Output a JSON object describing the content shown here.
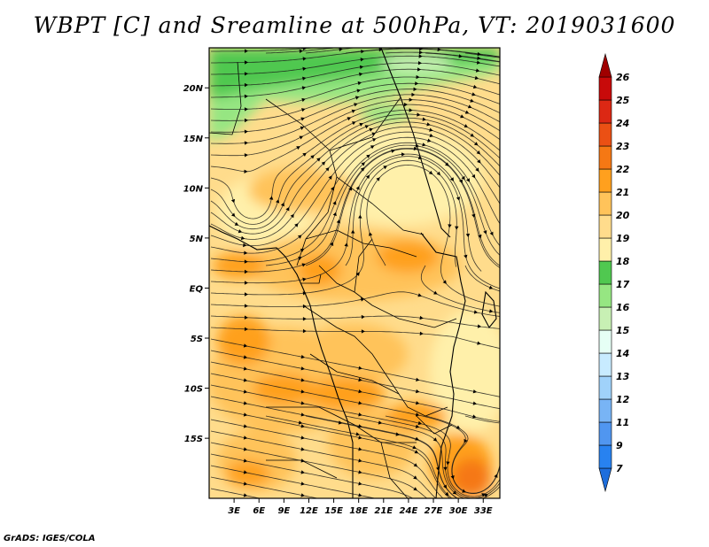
{
  "title": "WBPT [C] and Sreamline at 500hPa, VT: 2019031600",
  "footer": "GrADS: IGES/COLA",
  "map": {
    "lon_range": [
      0,
      35
    ],
    "lat_range": [
      -21,
      24
    ],
    "lon_ticks": [
      "3E",
      "6E",
      "9E",
      "12E",
      "15E",
      "18E",
      "21E",
      "24E",
      "27E",
      "30E",
      "33E"
    ],
    "lat_ticks": [
      "20N",
      "15N",
      "10N",
      "5N",
      "EQ",
      "5S",
      "10S",
      "15S"
    ]
  },
  "colorbar": {
    "labels": [
      "7",
      "9",
      "11",
      "12",
      "13",
      "14",
      "15",
      "16",
      "17",
      "18",
      "19",
      "20",
      "21",
      "22",
      "23",
      "24",
      "25",
      "26"
    ],
    "colors": [
      "#1e6edc",
      "#2882f0",
      "#5096f0",
      "#78b4f5",
      "#a0d2fa",
      "#c8ebff",
      "#e6fff5",
      "#c8f0b4",
      "#96e682",
      "#50c850",
      "#fff0aa",
      "#ffdc8c",
      "#ffc35a",
      "#ffa01e",
      "#f57814",
      "#eb5014",
      "#dc2814",
      "#c80a0a",
      "#a00000"
    ]
  }
}
